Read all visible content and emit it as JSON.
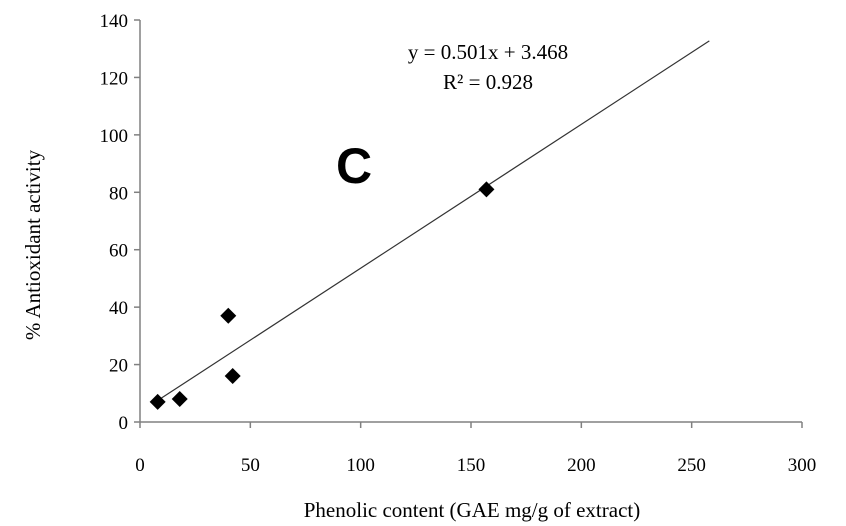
{
  "chart_data": {
    "type": "scatter",
    "title": "",
    "xlabel": "Phenolic content (GAE mg/g of extract)",
    "ylabel": "% Antioxidant activity",
    "xlim": [
      0,
      300
    ],
    "ylim": [
      0,
      140
    ],
    "x_ticks": [
      0,
      50,
      100,
      150,
      200,
      250,
      300
    ],
    "y_ticks": [
      0,
      20,
      40,
      60,
      80,
      100,
      120,
      140
    ],
    "grid": false,
    "marker": "diamond",
    "marker_color": "#000000",
    "series": [
      {
        "points": [
          {
            "x": 8,
            "y": 7
          },
          {
            "x": 18,
            "y": 8
          },
          {
            "x": 40,
            "y": 37
          },
          {
            "x": 42,
            "y": 16
          },
          {
            "x": 157,
            "y": 81
          }
        ]
      }
    ],
    "trendline": {
      "type": "linear",
      "slope": 0.501,
      "intercept": 3.468,
      "x_range": [
        8,
        258
      ],
      "equation_text": "y = 0.501x + 3.468",
      "r2_text": "R² = 0.928"
    },
    "panel_label": "C"
  }
}
